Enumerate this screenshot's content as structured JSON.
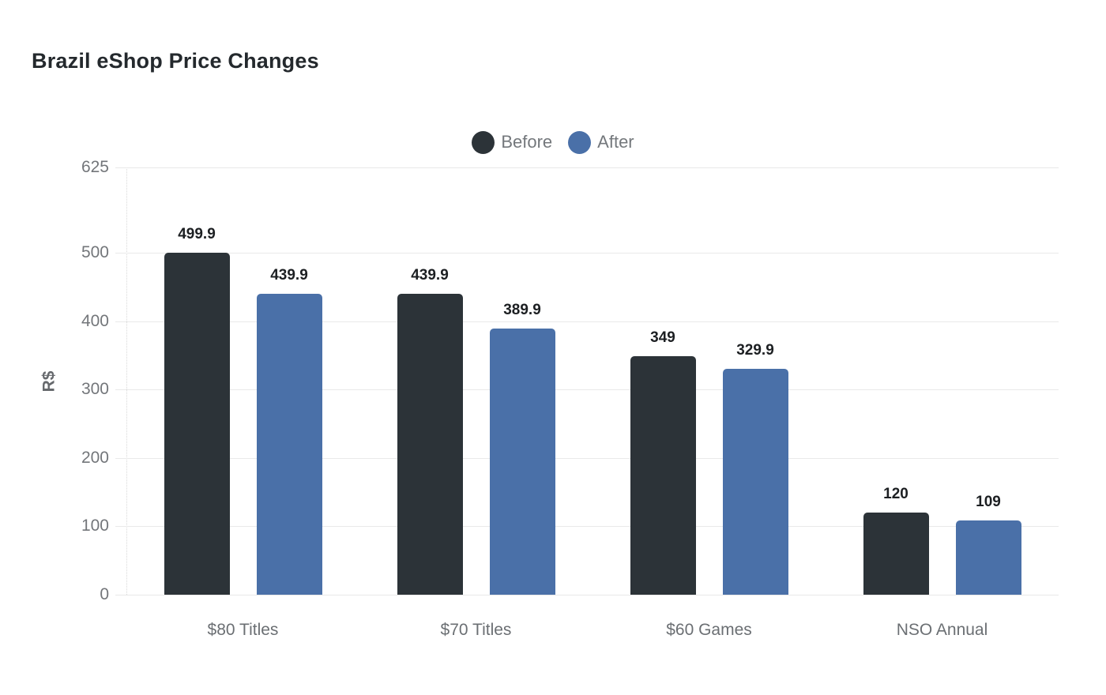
{
  "page": {
    "background": "#ffffff"
  },
  "chart_data": {
    "type": "bar",
    "title": "Brazil eShop Price Changes",
    "categories": [
      "$80 Titles",
      "$70 Titles",
      "$60 Games",
      "NSO Annual"
    ],
    "series": [
      {
        "name": "Before",
        "color": "#2c3338",
        "values": [
          499.9,
          439.9,
          349,
          120
        ]
      },
      {
        "name": "After",
        "color": "#4a70a8",
        "values": [
          439.9,
          389.9,
          329.9,
          109
        ]
      }
    ],
    "xlabel": "",
    "ylabel": "R$",
    "ylim": [
      0,
      625
    ],
    "yticks": [
      625,
      500,
      400,
      300,
      200,
      100,
      0
    ],
    "grid": true,
    "value_labels_shown": true,
    "legend_position": "top-center",
    "style": {
      "grid_color": "#e9e9e9",
      "axis_line_color": "#d9d9d9",
      "tick_text_color": "#73767a",
      "category_text_color": "#6b6f73",
      "legend_text_color": "#74787c",
      "value_label_color": "#1c1f22",
      "title_color": "#24292d",
      "ylabel_color": "#66696d",
      "background": "#ffffff"
    }
  }
}
